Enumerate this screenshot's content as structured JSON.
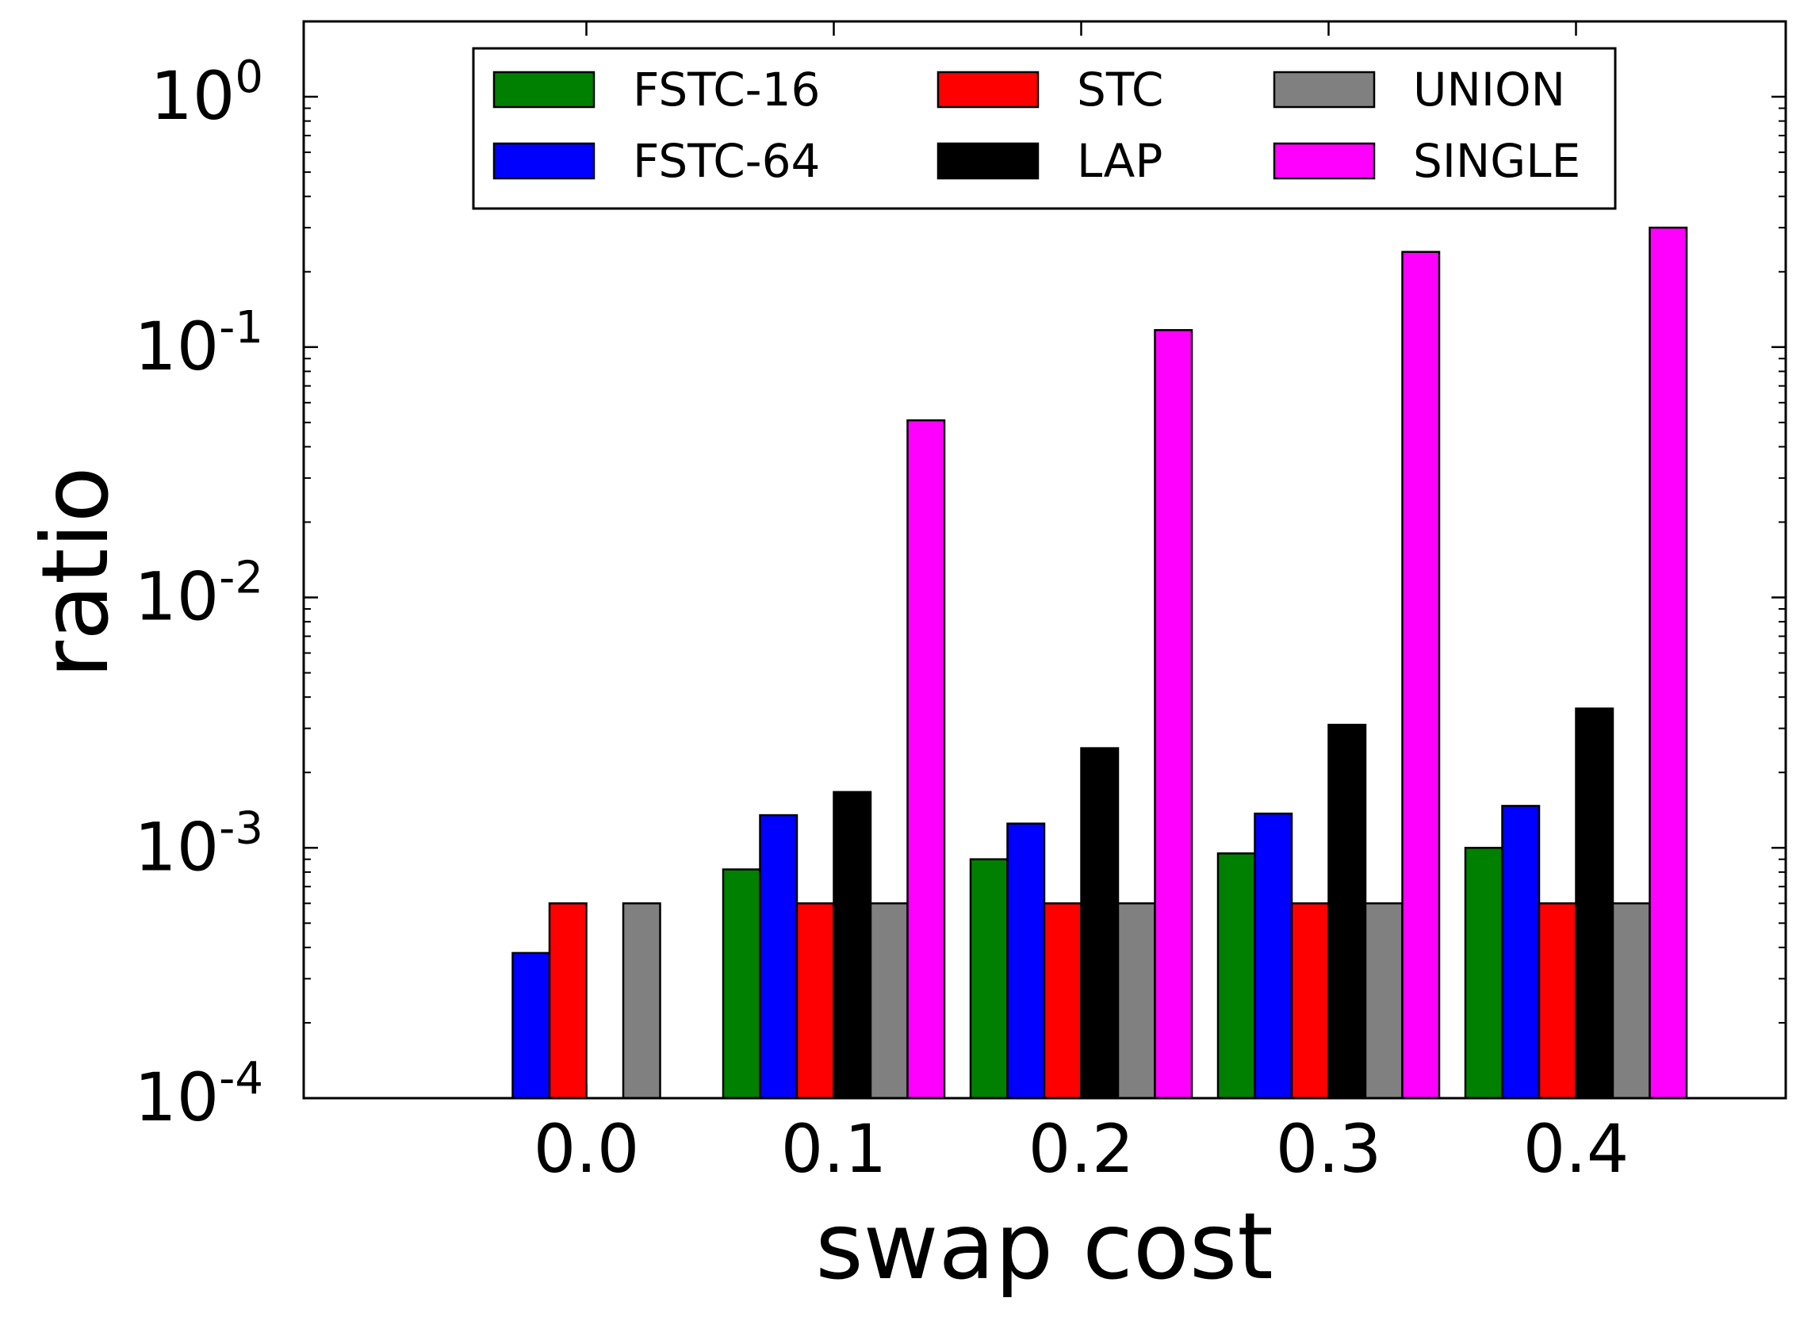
{
  "chart_data": {
    "type": "bar",
    "xlabel": "swap cost",
    "ylabel": "ratio",
    "yscale": "log",
    "ylim": [
      0.0001,
      2
    ],
    "categories": [
      "0.0",
      "0.1",
      "0.2",
      "0.3",
      "0.4"
    ],
    "y_ticks": [
      {
        "base": "10",
        "exp": "-4",
        "value": 0.0001
      },
      {
        "base": "10",
        "exp": "-3",
        "value": 0.001
      },
      {
        "base": "10",
        "exp": "-2",
        "value": 0.01
      },
      {
        "base": "10",
        "exp": "-1",
        "value": 0.1
      },
      {
        "base": "10",
        "exp": "0",
        "value": 1
      }
    ],
    "legend_position": "top-center",
    "legend_columns": 3,
    "series": [
      {
        "name": "FSTC-16",
        "color": "#008000",
        "values": [
          null,
          0.00082,
          0.0009,
          0.00095,
          0.001
        ]
      },
      {
        "name": "FSTC-64",
        "color": "#0000ff",
        "values": [
          0.00038,
          0.00135,
          0.00125,
          0.00137,
          0.00147
        ]
      },
      {
        "name": "STC",
        "color": "#ff0000",
        "values": [
          0.0006,
          0.0006,
          0.0006,
          0.0006,
          0.0006
        ]
      },
      {
        "name": "LAP",
        "color": "#000000",
        "values": [
          null,
          0.00167,
          0.0025,
          0.0031,
          0.0036
        ]
      },
      {
        "name": "UNION",
        "color": "#808080",
        "values": [
          0.0006,
          0.0006,
          0.0006,
          0.0006,
          0.0006
        ]
      },
      {
        "name": "SINGLE",
        "color": "#ff00ff",
        "values": [
          null,
          0.051,
          0.117,
          0.24,
          0.3
        ]
      }
    ]
  }
}
